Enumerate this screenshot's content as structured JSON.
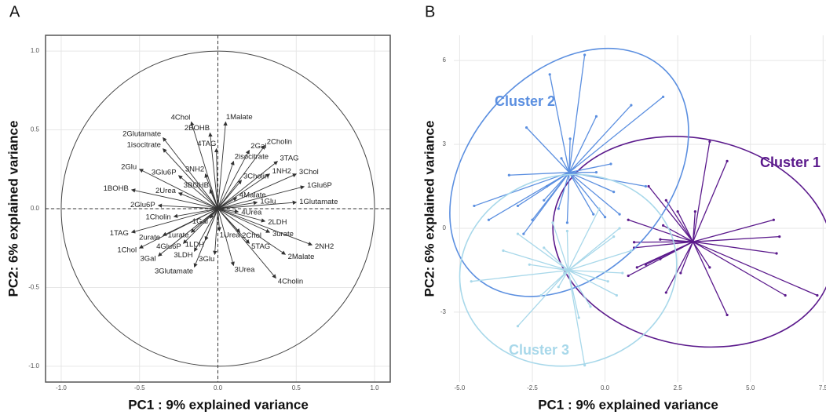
{
  "chart_data": [
    {
      "type": "biplot",
      "panel_label": "A",
      "xlabel": "PC1 : 9% explained variance",
      "ylabel": "PC2: 6% explained variance",
      "xlim": [
        -1.1,
        1.1
      ],
      "ylim": [
        -1.1,
        1.1
      ],
      "xticks": [
        {
          "value": -1,
          "label": "-1.0"
        },
        -0.5,
        {
          "value": 0,
          "label": "0.0"
        },
        0.5,
        {
          "value": 1,
          "label": "1.0"
        }
      ],
      "yticks": [
        {
          "value": -1,
          "label": "-1.0"
        },
        -0.5,
        {
          "value": 0,
          "label": "0.0"
        },
        0.5,
        {
          "value": 1,
          "label": "1.0"
        }
      ],
      "grid": true,
      "color": "#333333",
      "labels": [
        "1Malate",
        "4Chol",
        "2Glutamate",
        "2BOHB",
        "4TAG",
        "2Gal",
        "2Cholin",
        "3TAG",
        "1isocitrate",
        "2isocitrate",
        "3NH2",
        "1NH2",
        "3Chol",
        "3Cholin",
        "1Glu6P",
        "2Glu",
        "3Glu6P",
        "3BOHB",
        "1BOHB",
        "2Urea",
        "4Malate",
        "1Glu",
        "1Glutamate",
        "2Glu6P",
        "4Urea",
        "2LDH",
        "1Cholin",
        "1Gal",
        "1TAG",
        "2urate",
        "1urate",
        "1Urea",
        "2Chol",
        "3urate",
        "2NH2",
        "4Glu6P",
        "1LDH",
        "1Chol",
        "3Gal",
        "3LDH",
        "3Glu",
        "5TAG",
        "2Malate",
        "3Glutamate",
        "3Urea",
        "4Cholin"
      ],
      "x": [
        0.05,
        -0.17,
        -0.35,
        -0.05,
        -0.01,
        0.2,
        0.3,
        0.38,
        -0.35,
        0.1,
        -0.08,
        0.33,
        0.5,
        0.15,
        0.55,
        -0.5,
        -0.25,
        -0.05,
        -0.55,
        -0.25,
        0.12,
        0.25,
        0.5,
        -0.38,
        0.13,
        0.3,
        -0.28,
        -0.05,
        -0.55,
        -0.35,
        -0.17,
        0.01,
        0.14,
        0.33,
        0.6,
        -0.22,
        -0.08,
        -0.5,
        -0.38,
        -0.15,
        -0.02,
        0.2,
        0.43,
        -0.15,
        0.1,
        0.37
      ],
      "y": [
        0.55,
        0.55,
        0.45,
        0.48,
        0.38,
        0.37,
        0.4,
        0.3,
        0.38,
        0.3,
        0.22,
        0.22,
        0.22,
        0.18,
        0.14,
        0.25,
        0.21,
        0.12,
        0.12,
        0.1,
        0.07,
        0.04,
        0.04,
        0.02,
        -0.02,
        -0.08,
        -0.05,
        -0.06,
        -0.15,
        -0.17,
        -0.15,
        -0.14,
        -0.15,
        -0.15,
        -0.23,
        -0.22,
        -0.2,
        -0.25,
        -0.3,
        -0.27,
        -0.29,
        -0.22,
        -0.29,
        -0.37,
        -0.36,
        -0.44
      ]
    },
    {
      "type": "cluster",
      "panel_label": "B",
      "xlabel": "PC1 : 9% explained variance",
      "ylabel": "PC2: 6% explained variance",
      "xlim": [
        -5.2,
        7.6
      ],
      "ylim": [
        -5.5,
        6.9
      ],
      "xticks": [
        {
          "value": -5,
          "label": "-5.0"
        },
        -2.5,
        {
          "value": 0,
          "label": "0.0"
        },
        2.5,
        {
          "value": 5,
          "label": "5.0"
        },
        7.5
      ],
      "yticks": [
        -3,
        0,
        3,
        6
      ],
      "grid": true,
      "series": [
        {
          "name": "Cluster 1",
          "color": "#5b1a8c",
          "x": [
            3.6,
            4.2,
            1.5,
            2.1,
            2.5,
            3.1,
            5.8,
            6.0,
            5.9,
            6.2,
            7.3,
            4.2,
            3.6,
            2.6,
            2.1,
            1.4,
            0.8,
            1.1,
            1.9,
            1.0,
            1.0,
            1.9,
            2.0,
            0.8
          ],
          "y": [
            3.1,
            2.4,
            1.5,
            1.0,
            0.6,
            0.6,
            0.3,
            -0.3,
            -0.9,
            -2.4,
            -2.4,
            -3.1,
            -1.4,
            -1.6,
            -2.3,
            -1.3,
            -1.7,
            -1.4,
            -1.1,
            -0.7,
            -0.5,
            -0.4,
            0.1,
            0.3
          ]
        },
        {
          "name": "Cluster 2",
          "color": "#5b8fe0",
          "x": [
            -0.7,
            -1.9,
            0.9,
            2.0,
            -0.3,
            -2.7,
            -1.2,
            -3.3,
            -4.5,
            -4.0,
            -3.0,
            -2.5,
            -2.8,
            -2.1,
            -1.6,
            0.5,
            0.0,
            -0.4,
            -1.3,
            0.2,
            1.4,
            0.3,
            -0.3,
            -2.0,
            -1.5
          ],
          "y": [
            6.2,
            5.5,
            4.4,
            4.7,
            4.0,
            3.6,
            3.2,
            1.9,
            0.8,
            0.3,
            0.8,
            0.3,
            -0.2,
            1.0,
            0.7,
            0.5,
            0.4,
            0.5,
            0.2,
            2.3,
            1.5,
            1.3,
            2.0,
            1.5,
            2.5
          ]
        },
        {
          "name": "Cluster 3",
          "color": "#a8d8ea",
          "x": [
            -4.6,
            -3.0,
            -2.2,
            -0.7,
            0.6,
            0.4,
            -0.5,
            -1.6,
            -2.6,
            -3.5,
            -1.8,
            -0.2,
            -2.1,
            0.3,
            0.9,
            -3.0,
            -1.3,
            0.1,
            -1.4,
            -0.9,
            0.5
          ],
          "y": [
            -1.9,
            -3.5,
            -2.4,
            -4.9,
            -1.6,
            -2.4,
            -2.8,
            -2.1,
            -1.3,
            -0.8,
            0.2,
            0.7,
            -0.7,
            -0.3,
            -0.8,
            -0.2,
            -0.1,
            -1.9,
            -1.6,
            -3.2,
            0.0
          ]
        }
      ]
    }
  ]
}
